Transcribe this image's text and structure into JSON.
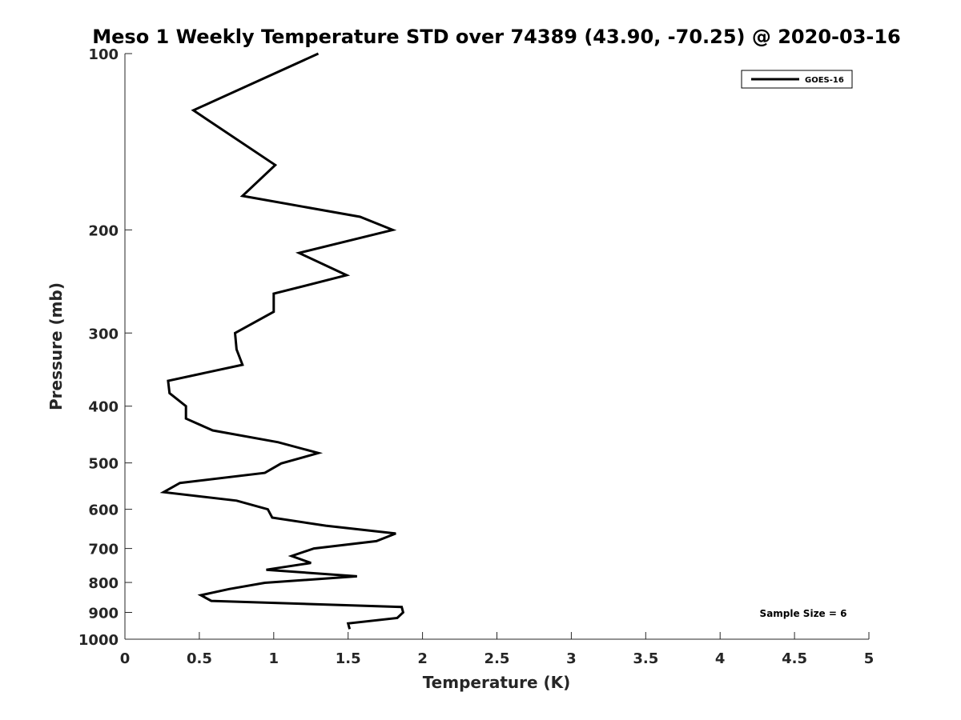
{
  "chart_data": {
    "type": "line",
    "title": "Meso 1 Weekly Temperature STD over 74389 (43.90, -70.25) @ 2020-03-16",
    "xlabel": "Temperature (K)",
    "ylabel": "Pressure (mb)",
    "xlim": [
      0,
      5
    ],
    "ylim": [
      100,
      1000
    ],
    "y_scale": "log",
    "y_reversed": true,
    "x_ticks": [
      0,
      0.5,
      1,
      1.5,
      2,
      2.5,
      3,
      3.5,
      4,
      4.5,
      5
    ],
    "x_tick_labels": [
      "0",
      "0.5",
      "1",
      "1.5",
      "2",
      "2.5",
      "3",
      "3.5",
      "4",
      "4.5",
      "5"
    ],
    "y_ticks": [
      100,
      200,
      300,
      400,
      500,
      600,
      700,
      800,
      900,
      1000
    ],
    "y_tick_labels": [
      "100",
      "200",
      "300",
      "400",
      "500",
      "600",
      "700",
      "800",
      "900",
      "1000"
    ],
    "grid": false,
    "legend_position": "top-right",
    "series": [
      {
        "name": "GOES-16",
        "color": "#000000",
        "points": [
          [
            1.3,
            100
          ],
          [
            0.46,
            125
          ],
          [
            1.01,
            155
          ],
          [
            0.79,
            175
          ],
          [
            1.58,
            190
          ],
          [
            1.8,
            200
          ],
          [
            1.17,
            219
          ],
          [
            1.49,
            239
          ],
          [
            1.0,
            257
          ],
          [
            1.0,
            276
          ],
          [
            0.74,
            300
          ],
          [
            0.75,
            320
          ],
          [
            0.79,
            340
          ],
          [
            0.29,
            362
          ],
          [
            0.3,
            380
          ],
          [
            0.41,
            400
          ],
          [
            0.41,
            420
          ],
          [
            0.59,
            440
          ],
          [
            1.03,
            461
          ],
          [
            1.3,
            481
          ],
          [
            1.05,
            501
          ],
          [
            0.94,
            520
          ],
          [
            0.37,
            541
          ],
          [
            0.26,
            561
          ],
          [
            0.75,
            580
          ],
          [
            0.96,
            600
          ],
          [
            0.99,
            620
          ],
          [
            1.35,
            640
          ],
          [
            1.82,
            660
          ],
          [
            1.69,
            680
          ],
          [
            1.27,
            700
          ],
          [
            1.12,
            721
          ],
          [
            1.25,
            741
          ],
          [
            0.95,
            761
          ],
          [
            1.56,
            781
          ],
          [
            0.94,
            801
          ],
          [
            0.7,
            821
          ],
          [
            0.51,
            841
          ],
          [
            0.58,
            860
          ],
          [
            1.86,
            881
          ],
          [
            1.87,
            900
          ],
          [
            1.83,
            920
          ],
          [
            1.5,
            940
          ],
          [
            1.51,
            961
          ]
        ]
      }
    ],
    "annotation": "Sample Size = 6"
  }
}
